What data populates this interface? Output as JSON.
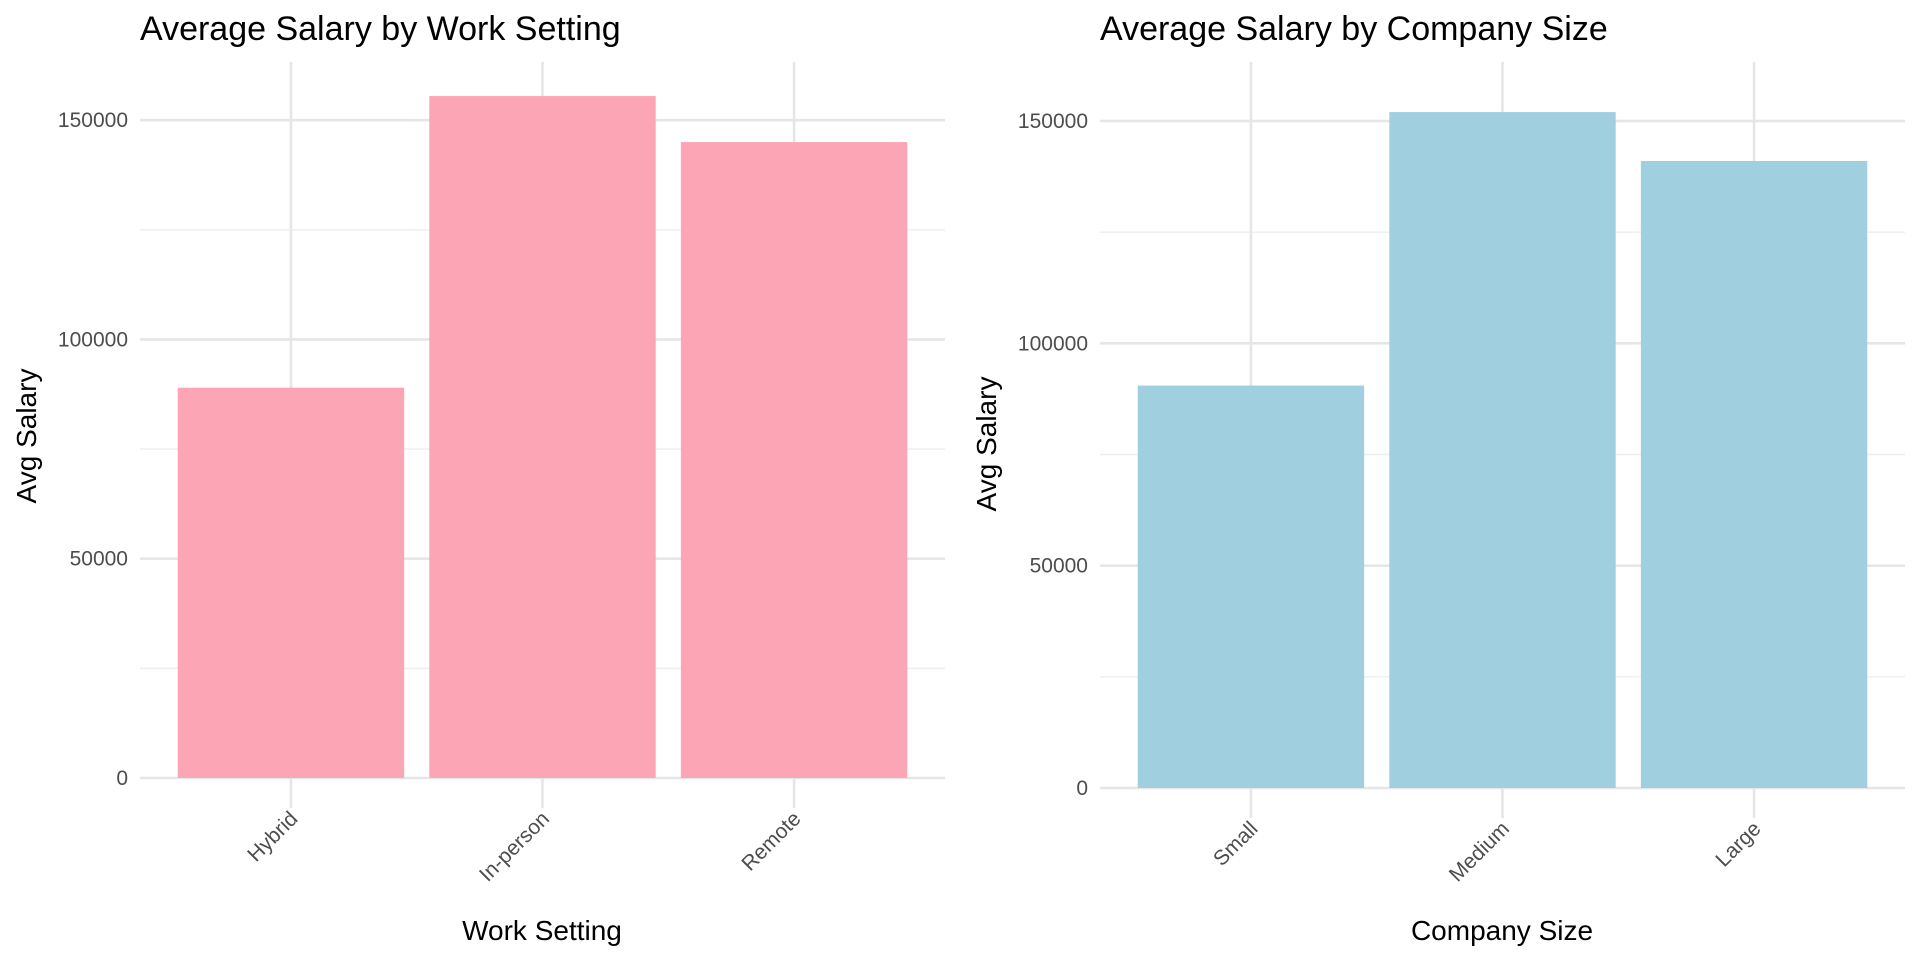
{
  "chart_data": [
    {
      "type": "bar",
      "title": "Average Salary by Work Setting",
      "xlabel": "Work Setting",
      "ylabel": "Avg Salary",
      "categories": [
        "Hybrid",
        "In-person",
        "Remote"
      ],
      "values": [
        89000,
        155500,
        145000
      ],
      "ylim": [
        0,
        160000
      ],
      "yticks": [
        0,
        50000,
        100000,
        150000
      ],
      "ytick_labels": [
        "0",
        "50000",
        "100000",
        "150000"
      ],
      "color": "#fca5b5",
      "grid": true,
      "legend": "none"
    },
    {
      "type": "bar",
      "title": "Average Salary by Company Size",
      "xlabel": "Company Size",
      "ylabel": "Avg Salary",
      "categories": [
        "Small",
        "Medium",
        "Large"
      ],
      "values": [
        90500,
        152000,
        141000
      ],
      "ylim": [
        0,
        160000
      ],
      "yticks": [
        0,
        50000,
        100000,
        150000
      ],
      "ytick_labels": [
        "0",
        "50000",
        "100000",
        "150000"
      ],
      "color": "#a0cfe0",
      "grid": true,
      "legend": "none"
    }
  ]
}
